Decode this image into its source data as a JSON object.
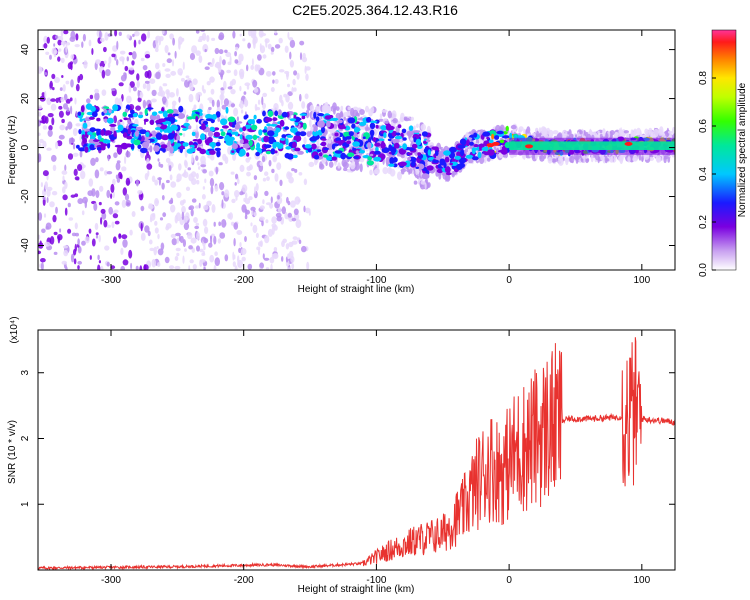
{
  "title": "C2E5.2025.364.12.43.R16",
  "chart_data": [
    {
      "type": "heatmap",
      "title": "C2E5.2025.364.12.43.R16",
      "xlabel": "Height of straight line (km)",
      "ylabel": "Frequency (Hz)",
      "xlim": [
        -355,
        125
      ],
      "ylim": [
        -50,
        48
      ],
      "xticks": [
        -300,
        -200,
        -100,
        0,
        100
      ],
      "yticks": [
        -40,
        -20,
        0,
        20,
        40
      ],
      "ridge": [
        {
          "x": -320,
          "y": 8
        },
        {
          "x": -250,
          "y": 7
        },
        {
          "x": -200,
          "y": 6
        },
        {
          "x": -150,
          "y": 5
        },
        {
          "x": -110,
          "y": 3
        },
        {
          "x": -80,
          "y": 1
        },
        {
          "x": -60,
          "y": -4
        },
        {
          "x": -45,
          "y": -7
        },
        {
          "x": -30,
          "y": 0
        },
        {
          "x": -15,
          "y": 1
        },
        {
          "x": 0,
          "y": 3
        },
        {
          "x": 40,
          "y": 0
        },
        {
          "x": 90,
          "y": 1
        },
        {
          "x": 125,
          "y": 1
        }
      ],
      "colorbar": {
        "label": "Normalized spectral amplitude",
        "range": [
          0,
          1
        ],
        "ticks": [
          0.0,
          0.2,
          0.4,
          0.6,
          0.8
        ]
      }
    },
    {
      "type": "line",
      "xlabel": "Height of straight line (km)",
      "ylabel": "SNR (10 * v/v)",
      "scale_label": "(x10⁴)",
      "xlim": [
        -355,
        125
      ],
      "ylim": [
        0,
        3.65
      ],
      "xticks": [
        -300,
        -200,
        -100,
        0,
        100
      ],
      "yticks": [
        1,
        2,
        3
      ],
      "series": [
        {
          "name": "SNR",
          "color": "#e8322f",
          "envelope": [
            {
              "x": -355,
              "y": 0.03
            },
            {
              "x": -250,
              "y": 0.05
            },
            {
              "x": -180,
              "y": 0.08
            },
            {
              "x": -150,
              "y": 0.05
            },
            {
              "x": -110,
              "y": 0.1
            },
            {
              "x": -90,
              "y": 0.3
            },
            {
              "x": -70,
              "y": 0.45
            },
            {
              "x": -50,
              "y": 0.55
            },
            {
              "x": -35,
              "y": 0.9
            },
            {
              "x": -25,
              "y": 1.3
            },
            {
              "x": -15,
              "y": 1.6
            },
            {
              "x": -5,
              "y": 1.5
            },
            {
              "x": 5,
              "y": 1.8
            },
            {
              "x": 20,
              "y": 2.0
            },
            {
              "x": 30,
              "y": 2.2
            },
            {
              "x": 45,
              "y": 2.3
            },
            {
              "x": 60,
              "y": 2.3
            },
            {
              "x": 80,
              "y": 2.32
            },
            {
              "x": 88,
              "y": 2.35
            },
            {
              "x": 95,
              "y": 2.4
            },
            {
              "x": 100,
              "y": 2.3
            },
            {
              "x": 125,
              "y": 2.25
            }
          ]
        }
      ]
    }
  ]
}
